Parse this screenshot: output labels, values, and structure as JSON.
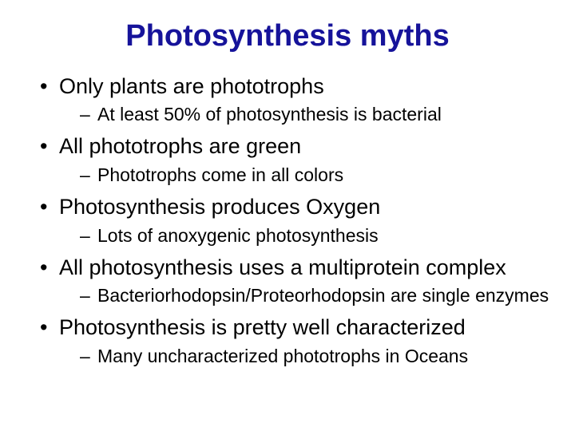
{
  "slide": {
    "title": "Photosynthesis myths",
    "title_color": "#16139a",
    "title_fontsize": 38,
    "bullet_color": "#000000",
    "level1_fontsize": 27,
    "level2_fontsize": 23,
    "items": [
      {
        "text": "Only plants are phototrophs",
        "sub": [
          "At least 50% of photosynthesis is bacterial"
        ]
      },
      {
        "text": "All phototrophs are green",
        "sub": [
          "Phototrophs come in all colors"
        ]
      },
      {
        "text": "Photosynthesis produces Oxygen",
        "sub": [
          "Lots of anoxygenic photosynthesis"
        ]
      },
      {
        "text": "All photosynthesis uses a multiprotein complex",
        "sub": [
          "Bacteriorhodopsin/Proteorhodopsin are single enzymes"
        ]
      },
      {
        "text": "Photosynthesis is pretty well characterized",
        "sub": [
          "Many uncharacterized phototrophs in Oceans"
        ]
      }
    ]
  }
}
